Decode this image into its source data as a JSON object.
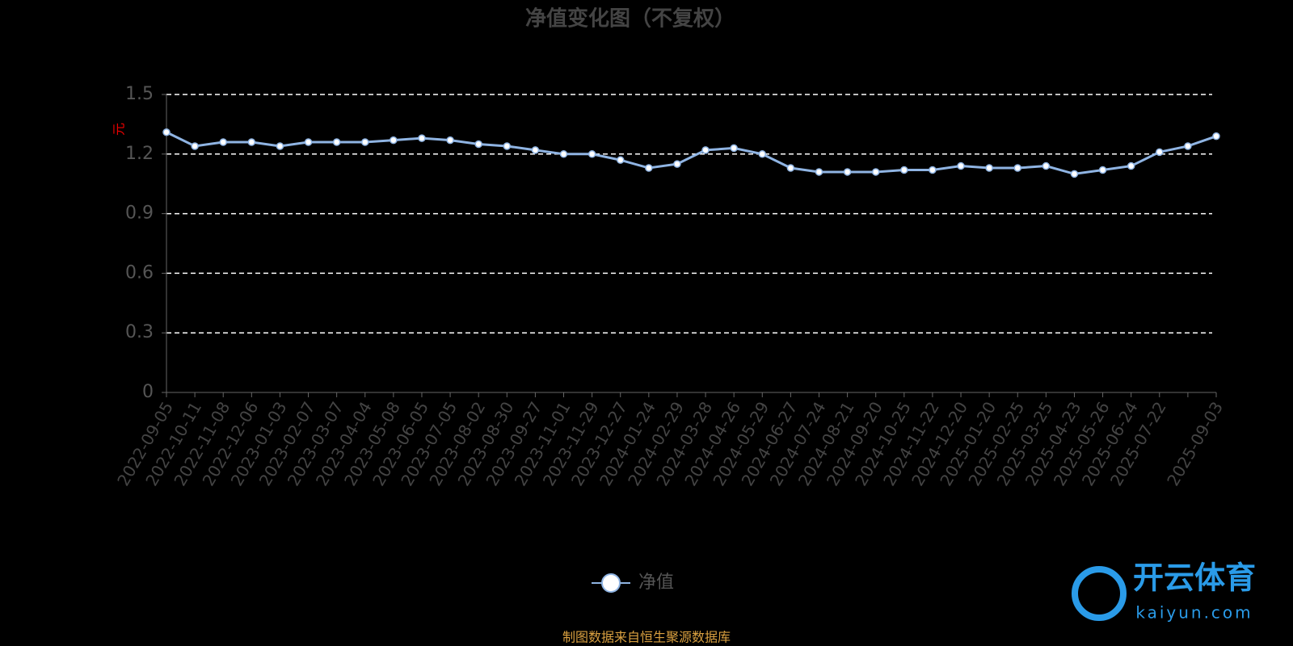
{
  "chart_data": {
    "type": "line",
    "title": "净值变化图（不复权）",
    "y_label": "元",
    "categories": [
      "2022-09-05",
      "2022-10-11",
      "2022-11-08",
      "2022-12-06",
      "2023-01-03",
      "2023-02-07",
      "2023-03-07",
      "2023-04-04",
      "2023-05-08",
      "2023-06-05",
      "2023-07-05",
      "2023-08-02",
      "2023-08-30",
      "2023-09-27",
      "2023-11-01",
      "2023-11-29",
      "2023-12-27",
      "2024-01-24",
      "2024-02-29",
      "2024-03-28",
      "2024-04-26",
      "2024-05-29",
      "2024-06-27",
      "2024-07-24",
      "2024-08-21",
      "2024-09-20",
      "2024-10-25",
      "2024-11-22",
      "2024-12-20",
      "2025-01-20",
      "2025-02-25",
      "2025-03-25",
      "2025-04-23",
      "2025-05-26",
      "2025-06-24",
      "2025-07-22",
      null,
      "2025-09-03"
    ],
    "series": [
      {
        "name": "净值",
        "color": "#8fb4e3",
        "values": [
          1.31,
          1.24,
          1.26,
          1.26,
          1.24,
          1.26,
          1.26,
          1.26,
          1.27,
          1.28,
          1.27,
          1.25,
          1.24,
          1.22,
          1.2,
          1.2,
          1.17,
          1.13,
          1.15,
          1.22,
          1.23,
          1.2,
          1.13,
          1.11,
          1.11,
          1.11,
          1.12,
          1.12,
          1.14,
          1.13,
          1.13,
          1.14,
          1.1,
          1.12,
          1.14,
          1.21,
          1.24,
          1.29
        ]
      }
    ],
    "ylim": [
      0,
      1.5
    ],
    "yticks": [
      0,
      0.3,
      0.6,
      0.9,
      1.2,
      1.5
    ],
    "grid": true,
    "source": "制图数据来自恒生聚源数据库",
    "watermark": {
      "name": "开云体育",
      "url": "kaiyun.com"
    }
  }
}
